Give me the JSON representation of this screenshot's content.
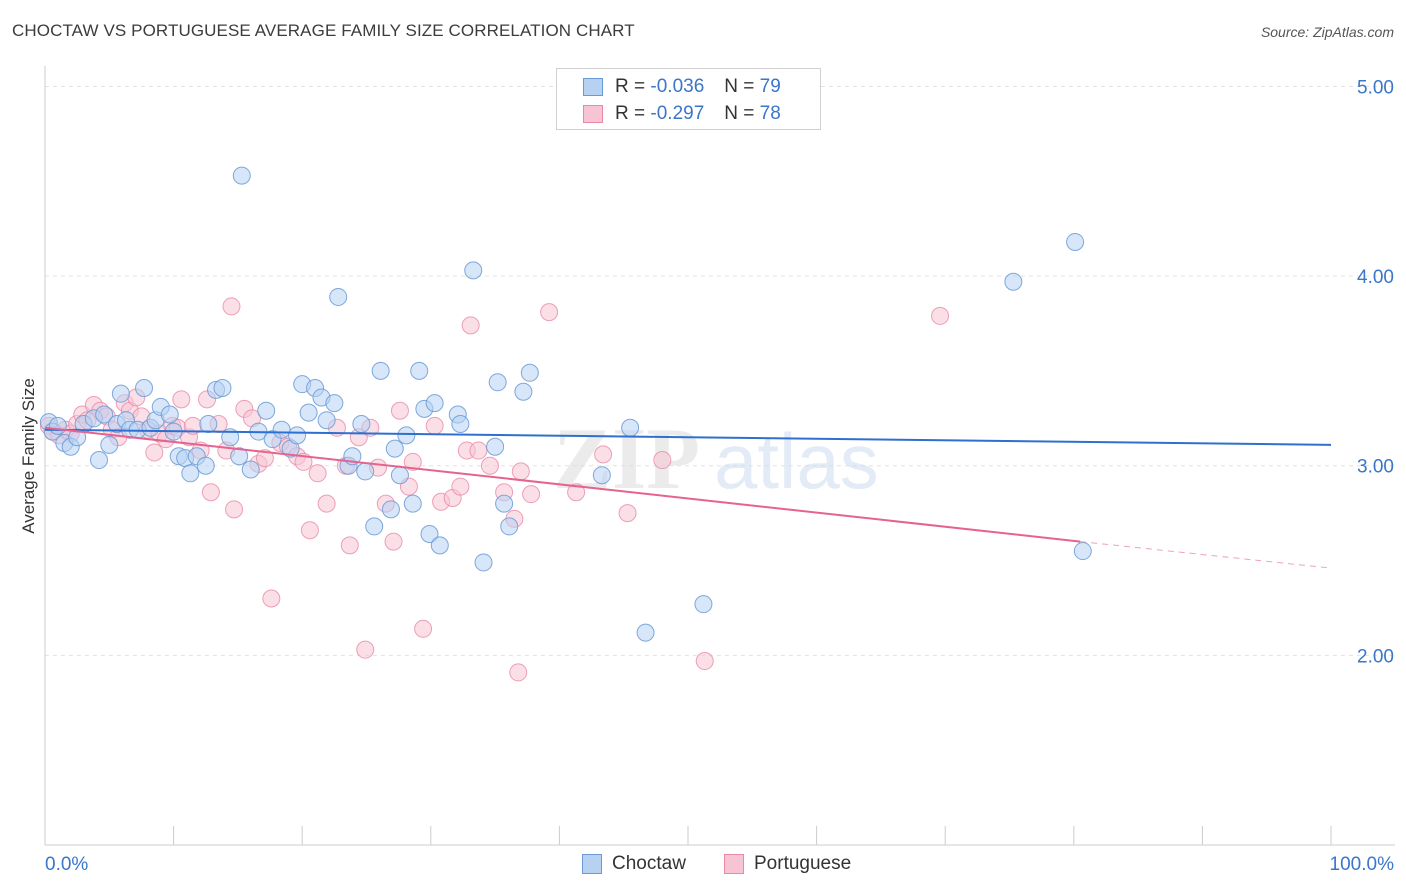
{
  "header": {
    "title": "CHOCTAW VS PORTUGUESE AVERAGE FAMILY SIZE CORRELATION CHART",
    "source": "Source: ZipAtlas.com"
  },
  "legend_stats": [
    {
      "r_label": "R =",
      "r_value": "-0.036",
      "n_label": "N =",
      "n_value": "79"
    },
    {
      "r_label": "R =",
      "r_value": "-0.297",
      "n_label": "N =",
      "n_value": "78"
    }
  ],
  "bottom_legend": [
    "Choctaw",
    "Portuguese"
  ],
  "watermark": {
    "zip": "ZIP",
    "atlas": "atlas"
  },
  "colors": {
    "choctaw_fill": "#b7d1f3",
    "choctaw_stroke": "#6a9ad6",
    "choctaw_line": "#2f6fcf",
    "portuguese_fill": "#f7c4d4",
    "portuguese_stroke": "#e88aa7",
    "portuguese_line": "#e5638f",
    "tick_label": "#3a76c9",
    "grid": "#e2e2e2"
  },
  "chart_data": {
    "type": "scatter",
    "title": "CHOCTAW VS PORTUGUESE AVERAGE FAMILY SIZE CORRELATION CHART",
    "xlabel": "",
    "ylabel": "Average Family Size",
    "xlim": [
      0,
      100
    ],
    "ylim": [
      1.0,
      5.15
    ],
    "x_tick_labels": [
      "0.0%",
      "100.0%"
    ],
    "y_ticks": [
      2.0,
      3.0,
      4.0,
      5.0
    ],
    "y_tick_labels": [
      "2.00",
      "3.00",
      "4.00",
      "5.00"
    ],
    "series": [
      {
        "name": "Choctaw",
        "r": -0.036,
        "n": 79,
        "trend": {
          "x0": 0,
          "y0": 3.19,
          "x1": 100,
          "y1": 3.11
        },
        "points": [
          [
            0.3,
            3.23
          ],
          [
            0.6,
            3.18
          ],
          [
            1,
            3.21
          ],
          [
            1.5,
            3.12
          ],
          [
            2,
            3.1
          ],
          [
            2.5,
            3.15
          ],
          [
            3,
            3.22
          ],
          [
            3.8,
            3.25
          ],
          [
            4.2,
            3.03
          ],
          [
            4.6,
            3.27
          ],
          [
            5,
            3.11
          ],
          [
            5.6,
            3.22
          ],
          [
            5.9,
            3.38
          ],
          [
            6.3,
            3.24
          ],
          [
            6.6,
            3.19
          ],
          [
            7.2,
            3.19
          ],
          [
            7.7,
            3.41
          ],
          [
            8.2,
            3.2
          ],
          [
            8.6,
            3.24
          ],
          [
            9,
            3.31
          ],
          [
            9.7,
            3.27
          ],
          [
            10,
            3.18
          ],
          [
            10.4,
            3.05
          ],
          [
            10.9,
            3.04
          ],
          [
            11.3,
            2.96
          ],
          [
            11.8,
            3.05
          ],
          [
            12.5,
            3.0
          ],
          [
            12.7,
            3.22
          ],
          [
            13.3,
            3.4
          ],
          [
            13.8,
            3.41
          ],
          [
            14.4,
            3.15
          ],
          [
            15.1,
            3.05
          ],
          [
            15.3,
            4.53
          ],
          [
            16,
            2.98
          ],
          [
            16.6,
            3.18
          ],
          [
            17.2,
            3.29
          ],
          [
            17.7,
            3.14
          ],
          [
            18.4,
            3.19
          ],
          [
            19.1,
            3.09
          ],
          [
            19.6,
            3.16
          ],
          [
            20,
            3.43
          ],
          [
            20.5,
            3.28
          ],
          [
            21,
            3.41
          ],
          [
            21.5,
            3.36
          ],
          [
            21.9,
            3.24
          ],
          [
            22.5,
            3.33
          ],
          [
            22.8,
            3.89
          ],
          [
            23.6,
            3.0
          ],
          [
            23.9,
            3.05
          ],
          [
            24.6,
            3.22
          ],
          [
            24.9,
            2.97
          ],
          [
            25.6,
            2.68
          ],
          [
            26.1,
            3.5
          ],
          [
            26.9,
            2.77
          ],
          [
            27.2,
            3.09
          ],
          [
            27.6,
            2.95
          ],
          [
            28.1,
            3.16
          ],
          [
            28.6,
            2.8
          ],
          [
            29.1,
            3.5
          ],
          [
            29.5,
            3.3
          ],
          [
            29.9,
            2.64
          ],
          [
            30.3,
            3.33
          ],
          [
            30.7,
            2.58
          ],
          [
            32.1,
            3.27
          ],
          [
            32.3,
            3.22
          ],
          [
            33.3,
            4.03
          ],
          [
            34.1,
            2.49
          ],
          [
            35,
            3.1
          ],
          [
            35.2,
            3.44
          ],
          [
            35.7,
            2.8
          ],
          [
            36.1,
            2.68
          ],
          [
            37.2,
            3.39
          ],
          [
            37.7,
            3.49
          ],
          [
            43.3,
            2.95
          ],
          [
            45.5,
            3.2
          ],
          [
            46.7,
            2.12
          ],
          [
            51.2,
            2.27
          ],
          [
            75.3,
            3.97
          ],
          [
            80.1,
            4.18
          ],
          [
            80.7,
            2.55
          ]
        ]
      },
      {
        "name": "Portuguese",
        "r": -0.297,
        "n": 78,
        "trend": {
          "x0": 0,
          "y0": 3.2,
          "x1": 80.5,
          "y1": 2.6,
          "dash_x1": 100,
          "dash_y1": 2.46
        },
        "points": [
          [
            0.3,
            3.21
          ],
          [
            0.6,
            3.18
          ],
          [
            1.1,
            3.16
          ],
          [
            1.6,
            3.19
          ],
          [
            2,
            3.17
          ],
          [
            2.5,
            3.22
          ],
          [
            2.9,
            3.27
          ],
          [
            3.3,
            3.24
          ],
          [
            3.8,
            3.32
          ],
          [
            4.3,
            3.29
          ],
          [
            4.8,
            3.26
          ],
          [
            5.2,
            3.19
          ],
          [
            5.7,
            3.15
          ],
          [
            6.2,
            3.33
          ],
          [
            6.6,
            3.29
          ],
          [
            7.1,
            3.36
          ],
          [
            7.5,
            3.26
          ],
          [
            8,
            3.19
          ],
          [
            8.5,
            3.07
          ],
          [
            8.9,
            3.17
          ],
          [
            9.4,
            3.14
          ],
          [
            9.9,
            3.21
          ],
          [
            10.3,
            3.2
          ],
          [
            10.6,
            3.35
          ],
          [
            11.2,
            3.15
          ],
          [
            11.5,
            3.21
          ],
          [
            12.1,
            3.08
          ],
          [
            12.6,
            3.35
          ],
          [
            12.9,
            2.86
          ],
          [
            13.5,
            3.22
          ],
          [
            14.1,
            3.08
          ],
          [
            14.5,
            3.84
          ],
          [
            14.7,
            2.77
          ],
          [
            15.5,
            3.3
          ],
          [
            16.1,
            3.25
          ],
          [
            16.6,
            3.01
          ],
          [
            17.1,
            3.04
          ],
          [
            17.6,
            2.3
          ],
          [
            18.3,
            3.12
          ],
          [
            18.9,
            3.1
          ],
          [
            19.6,
            3.05
          ],
          [
            20.1,
            3.02
          ],
          [
            20.6,
            2.66
          ],
          [
            21.2,
            2.96
          ],
          [
            21.9,
            2.8
          ],
          [
            22.7,
            3.2
          ],
          [
            23.4,
            3.0
          ],
          [
            23.7,
            2.58
          ],
          [
            24.4,
            3.15
          ],
          [
            24.9,
            2.03
          ],
          [
            25.3,
            3.2
          ],
          [
            25.9,
            2.99
          ],
          [
            26.5,
            2.8
          ],
          [
            27.1,
            2.6
          ],
          [
            27.6,
            3.29
          ],
          [
            28.3,
            2.89
          ],
          [
            28.6,
            3.02
          ],
          [
            29.4,
            2.14
          ],
          [
            30.3,
            3.21
          ],
          [
            30.8,
            2.81
          ],
          [
            31.7,
            2.83
          ],
          [
            32.3,
            2.89
          ],
          [
            32.8,
            3.08
          ],
          [
            33.1,
            3.74
          ],
          [
            33.7,
            3.08
          ],
          [
            34.6,
            3.0
          ],
          [
            35.7,
            2.86
          ],
          [
            36.5,
            2.72
          ],
          [
            36.8,
            1.91
          ],
          [
            37,
            2.97
          ],
          [
            37.8,
            2.85
          ],
          [
            39.2,
            3.81
          ],
          [
            41.3,
            2.86
          ],
          [
            43.4,
            3.06
          ],
          [
            45.3,
            2.75
          ],
          [
            48,
            3.03
          ],
          [
            51.3,
            1.97
          ],
          [
            69.6,
            3.79
          ]
        ]
      }
    ]
  }
}
